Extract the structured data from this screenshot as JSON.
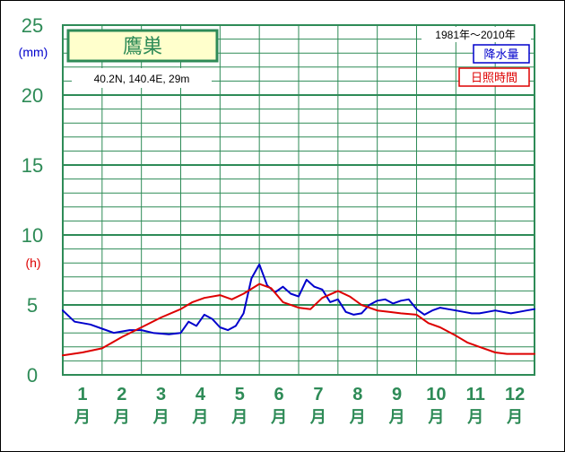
{
  "chart_data": {
    "type": "line",
    "title": "鷹巣",
    "subtitle": "40.2N,  140.4E,  29m",
    "period": "1981年〜2010年",
    "y_unit_precip": "(mm)",
    "y_unit_sun": "(h)",
    "ylim": [
      0,
      25
    ],
    "yticks": [
      0,
      5,
      10,
      15,
      20,
      25
    ],
    "grid": true,
    "legend_position": "top-right",
    "categories": [
      "1",
      "2",
      "3",
      "4",
      "5",
      "6",
      "7",
      "8",
      "9",
      "10",
      "11",
      "12"
    ],
    "month_suffix": "月",
    "colors": {
      "precip": "#0000cc",
      "sun": "#dd0000",
      "grid": "#2e8b57",
      "axis_text": "#2e8b57"
    },
    "series": [
      {
        "name": "降水量",
        "color": "#0000cc",
        "x": [
          0.0,
          0.3,
          0.7,
          1.0,
          1.3,
          1.7,
          2.0,
          2.3,
          2.7,
          3.0,
          3.2,
          3.4,
          3.6,
          3.8,
          4.0,
          4.2,
          4.4,
          4.6,
          4.8,
          5.0,
          5.2,
          5.4,
          5.6,
          5.8,
          6.0,
          6.2,
          6.4,
          6.6,
          6.8,
          7.0,
          7.2,
          7.4,
          7.6,
          7.8,
          8.0,
          8.2,
          8.4,
          8.6,
          8.8,
          9.0,
          9.2,
          9.4,
          9.6,
          9.8,
          10.0,
          10.2,
          10.4,
          10.6,
          10.8,
          11.0,
          11.2,
          11.4,
          11.6,
          11.8,
          12.0
        ],
        "values": [
          4.6,
          3.8,
          3.6,
          3.3,
          3.0,
          3.2,
          3.2,
          3.0,
          2.9,
          3.0,
          3.8,
          3.5,
          4.3,
          4.0,
          3.4,
          3.2,
          3.5,
          4.4,
          6.9,
          7.9,
          6.4,
          5.9,
          6.3,
          5.8,
          5.6,
          6.8,
          6.3,
          6.1,
          5.2,
          5.4,
          4.5,
          4.3,
          4.4,
          5.0,
          5.3,
          5.4,
          5.1,
          5.3,
          5.4,
          4.7,
          4.3,
          4.6,
          4.8,
          4.7,
          4.6,
          4.5,
          4.4,
          4.4,
          4.5,
          4.6,
          4.5,
          4.4,
          4.5,
          4.6,
          4.7
        ]
      },
      {
        "name": "日照時間",
        "color": "#dd0000",
        "x": [
          0.0,
          0.5,
          1.0,
          1.5,
          2.0,
          2.5,
          3.0,
          3.3,
          3.6,
          4.0,
          4.3,
          4.6,
          5.0,
          5.3,
          5.6,
          6.0,
          6.3,
          6.6,
          7.0,
          7.3,
          7.6,
          8.0,
          8.3,
          8.6,
          9.0,
          9.3,
          9.6,
          10.0,
          10.3,
          10.6,
          11.0,
          11.3,
          11.6,
          12.0
        ],
        "values": [
          1.4,
          1.6,
          1.9,
          2.7,
          3.4,
          4.1,
          4.7,
          5.2,
          5.5,
          5.7,
          5.4,
          5.8,
          6.5,
          6.2,
          5.2,
          4.8,
          4.7,
          5.5,
          6.0,
          5.6,
          5.0,
          4.6,
          4.5,
          4.4,
          4.3,
          3.7,
          3.4,
          2.8,
          2.3,
          2.0,
          1.6,
          1.5,
          1.5,
          1.5
        ]
      }
    ]
  }
}
